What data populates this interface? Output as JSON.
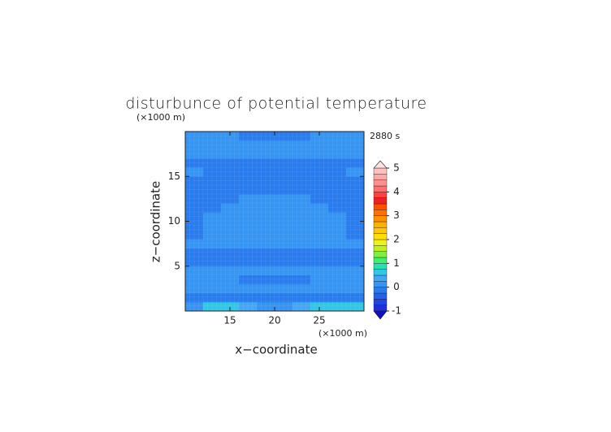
{
  "chart_data": {
    "type": "contour",
    "title": "disturbunce of potential temperature",
    "x_label": "x−coordinate",
    "y_label": "z−coordinate",
    "x_unit": "(×1000 m)",
    "y_unit": "(×1000 m)",
    "time_label": "2880 s",
    "xlim": [
      10,
      30
    ],
    "xticks": [
      15,
      20,
      25
    ],
    "ylim": [
      0,
      20
    ],
    "yticks": [
      5,
      10,
      15
    ],
    "grid": true,
    "x": [
      11,
      13,
      15,
      17,
      19,
      21,
      23,
      25,
      27,
      29
    ],
    "y": [
      0.5,
      1.5,
      2.5,
      3.5,
      4.5,
      5.5,
      6.5,
      7.5,
      8.5,
      9.5,
      10.5,
      11.5,
      12.5,
      13.5,
      14.5,
      15.5,
      16.5,
      17.5,
      18.5,
      19.5
    ],
    "z": [
      [
        0.1,
        0.6,
        0.6,
        0.3,
        0.1,
        0.1,
        0.3,
        0.6,
        0.6,
        0.6
      ],
      [
        -0.1,
        -0.1,
        -0.1,
        -0.1,
        -0.1,
        -0.1,
        -0.1,
        -0.1,
        -0.1,
        -0.1
      ],
      [
        0.1,
        0.1,
        0.1,
        0.1,
        0.1,
        0.1,
        0.1,
        0.1,
        0.1,
        0.1
      ],
      [
        0.1,
        0.1,
        0.1,
        -0.1,
        -0.1,
        -0.1,
        -0.1,
        0.1,
        0.1,
        0.1
      ],
      [
        0.1,
        0.1,
        0.1,
        0.1,
        0.1,
        0.1,
        0.1,
        0.1,
        0.1,
        0.1
      ],
      [
        -0.1,
        -0.1,
        -0.1,
        -0.1,
        -0.1,
        -0.1,
        -0.1,
        -0.1,
        -0.1,
        -0.1
      ],
      [
        -0.1,
        -0.1,
        -0.1,
        -0.1,
        -0.1,
        -0.1,
        -0.1,
        -0.1,
        -0.1,
        -0.1
      ],
      [
        0.1,
        0.1,
        0.1,
        0.1,
        0.1,
        0.1,
        0.1,
        0.1,
        0.1,
        0.1
      ],
      [
        -0.1,
        0.1,
        0.1,
        0.1,
        0.1,
        0.1,
        0.1,
        0.1,
        0.1,
        -0.1
      ],
      [
        -0.1,
        0.1,
        0.1,
        0.1,
        0.1,
        0.1,
        0.1,
        0.1,
        0.1,
        -0.1
      ],
      [
        -0.1,
        0.1,
        0.1,
        0.1,
        0.1,
        0.1,
        0.1,
        0.1,
        0.1,
        -0.1
      ],
      [
        -0.1,
        -0.1,
        0.1,
        0.1,
        0.1,
        0.1,
        0.1,
        0.1,
        -0.1,
        -0.1
      ],
      [
        -0.1,
        -0.1,
        -0.1,
        0.1,
        0.1,
        0.1,
        0.1,
        -0.1,
        -0.1,
        -0.1
      ],
      [
        -0.1,
        -0.1,
        -0.1,
        -0.1,
        -0.1,
        -0.1,
        -0.1,
        -0.1,
        -0.1,
        -0.1
      ],
      [
        -0.1,
        -0.1,
        -0.1,
        -0.1,
        -0.1,
        -0.1,
        -0.1,
        -0.1,
        -0.1,
        -0.1
      ],
      [
        0.1,
        -0.1,
        -0.1,
        -0.1,
        -0.1,
        -0.1,
        -0.1,
        -0.1,
        -0.1,
        0.1
      ],
      [
        -0.1,
        -0.1,
        -0.1,
        -0.1,
        -0.1,
        -0.1,
        -0.1,
        -0.1,
        -0.1,
        -0.1
      ],
      [
        0.1,
        0.1,
        0.1,
        0.1,
        0.1,
        0.1,
        0.1,
        0.1,
        0.1,
        0.1
      ],
      [
        0.1,
        0.1,
        0.1,
        0.1,
        0.1,
        0.1,
        0.1,
        0.1,
        0.1,
        0.1
      ],
      [
        0.1,
        0.1,
        0.1,
        -0.1,
        -0.1,
        -0.1,
        -0.1,
        0.1,
        0.1,
        0.1
      ]
    ],
    "levels": [
      -1,
      -0.75,
      -0.5,
      -0.25,
      0,
      0.25,
      0.5,
      0.75,
      1,
      1.25,
      1.5,
      1.75,
      2,
      2.25,
      2.5,
      2.75,
      3,
      3.25,
      3.5,
      3.75,
      4,
      4.25,
      4.5,
      4.75,
      5
    ],
    "colors": [
      "#1010c0",
      "#1f2fd8",
      "#2045e0",
      "#2460e8",
      "#2a7cee",
      "#3694f2",
      "#42a8f5",
      "#30c8e6",
      "#28e0b0",
      "#40ee70",
      "#80f040",
      "#c0f020",
      "#f0f020",
      "#ffe000",
      "#ffc800",
      "#ffb000",
      "#ff9000",
      "#ff7000",
      "#ff5000",
      "#f02020",
      "#ff4040",
      "#ff7070",
      "#ff9090",
      "#ffa8a8",
      "#ffc0c0",
      "#ffe0e0"
    ],
    "colorbar_ticks": [
      -1,
      0,
      1,
      2,
      3,
      4,
      5
    ]
  }
}
